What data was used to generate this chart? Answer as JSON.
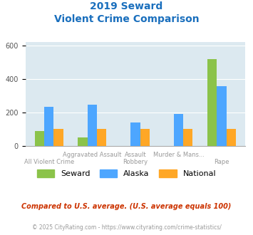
{
  "title_line1": "2019 Seward",
  "title_line2": "Violent Crime Comparison",
  "seward": [
    90,
    50,
    0,
    0,
    520
  ],
  "alaska": [
    235,
    245,
    140,
    190,
    355
  ],
  "national": [
    100,
    100,
    100,
    100,
    100
  ],
  "seward_color": "#8bc34a",
  "alaska_color": "#4da6ff",
  "national_color": "#ffa726",
  "title_color": "#1a6fbd",
  "plot_bg": "#dce9f0",
  "ylim": [
    0,
    620
  ],
  "yticks": [
    0,
    200,
    400,
    600
  ],
  "top_labels": [
    "",
    "Aggravated Assault",
    "Assault",
    "Murder & Mans...",
    ""
  ],
  "bottom_labels": [
    "All Violent Crime",
    "",
    "Robbery",
    "",
    "Rape"
  ],
  "footnote1": "Compared to U.S. average. (U.S. average equals 100)",
  "footnote2": "© 2025 CityRating.com - https://www.cityrating.com/crime-statistics/",
  "footnote1_color": "#cc3300",
  "footnote2_color": "#999999",
  "legend_labels": [
    "Seward",
    "Alaska",
    "National"
  ],
  "bar_width": 0.22
}
